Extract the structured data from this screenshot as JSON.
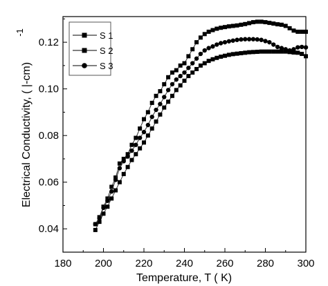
{
  "chart_data": {
    "type": "line",
    "xlabel": "Temperature, T (  K)",
    "ylabel": "Electrical Conductivity,    (  |-cm)",
    "ylabel_exponent": "-1",
    "xlim": [
      180,
      300
    ],
    "ylim": [
      0.03,
      0.131
    ],
    "xticks": [
      180,
      200,
      220,
      240,
      260,
      280,
      300
    ],
    "yticks": [
      0.04,
      0.06,
      0.08,
      0.1,
      0.12
    ],
    "ytick_labels": [
      "0.04",
      "0.06",
      "0.08",
      "0.10",
      "0.12"
    ],
    "legend_position": "top-left",
    "series": [
      {
        "name": "S 1",
        "marker": "square",
        "x": [
          196,
          198,
          200,
          202,
          204,
          206,
          208,
          210,
          212,
          214,
          216,
          218,
          220,
          222,
          224,
          226,
          228,
          230,
          232,
          234,
          236,
          238,
          240,
          242,
          244,
          246,
          248,
          250,
          252,
          254,
          256,
          258,
          260,
          262,
          264,
          266,
          268,
          270,
          272,
          274,
          276,
          278,
          280,
          282,
          284,
          286,
          288,
          290,
          292,
          294,
          296,
          298,
          300
        ],
        "y": [
          0.0395,
          0.043,
          0.0465,
          0.0495,
          0.053,
          0.0565,
          0.06,
          0.0635,
          0.0665,
          0.0695,
          0.072,
          0.0745,
          0.077,
          0.08,
          0.083,
          0.086,
          0.089,
          0.092,
          0.0945,
          0.097,
          0.0995,
          0.1015,
          0.1035,
          0.1055,
          0.107,
          0.1085,
          0.11,
          0.111,
          0.112,
          0.1127,
          0.1133,
          0.1138,
          0.1142,
          0.1146,
          0.1149,
          0.1151,
          0.1153,
          0.1155,
          0.1157,
          0.1158,
          0.1159,
          0.116,
          0.116,
          0.116,
          0.116,
          0.116,
          0.116,
          0.116,
          0.1158,
          0.1156,
          0.1155,
          0.115,
          0.114
        ]
      },
      {
        "name": "S 2",
        "marker": "square",
        "x": [
          196,
          198,
          200,
          202,
          204,
          206,
          208,
          210,
          212,
          214,
          216,
          218,
          220,
          222,
          224,
          226,
          228,
          230,
          232,
          234,
          236,
          238,
          240,
          242,
          244,
          246,
          248,
          250,
          252,
          254,
          256,
          258,
          260,
          262,
          264,
          266,
          268,
          270,
          272,
          274,
          276,
          278,
          280,
          282,
          284,
          286,
          288,
          290,
          292,
          294,
          296,
          298,
          300
        ],
        "y": [
          0.042,
          0.045,
          0.0495,
          0.053,
          0.058,
          0.062,
          0.068,
          0.07,
          0.072,
          0.076,
          0.079,
          0.083,
          0.087,
          0.09,
          0.094,
          0.097,
          0.099,
          0.102,
          0.105,
          0.107,
          0.108,
          0.11,
          0.111,
          0.114,
          0.117,
          0.12,
          0.122,
          0.1235,
          0.1245,
          0.1252,
          0.1258,
          0.1262,
          0.1265,
          0.1268,
          0.127,
          0.1272,
          0.1275,
          0.1278,
          0.1282,
          0.1286,
          0.1288,
          0.1288,
          0.1286,
          0.1283,
          0.128,
          0.1277,
          0.1275,
          0.127,
          0.126,
          0.125,
          0.1245,
          0.1245,
          0.1245
        ]
      },
      {
        "name": "S 3",
        "marker": "circle",
        "x": [
          196,
          198,
          200,
          202,
          204,
          206,
          208,
          210,
          212,
          214,
          216,
          218,
          220,
          222,
          224,
          226,
          228,
          230,
          232,
          234,
          236,
          238,
          240,
          242,
          244,
          246,
          248,
          250,
          252,
          254,
          256,
          258,
          260,
          262,
          264,
          266,
          268,
          270,
          272,
          274,
          276,
          278,
          280,
          282,
          284,
          286,
          288,
          290,
          292,
          294,
          296,
          298,
          300
        ],
        "y": [
          0.042,
          0.0445,
          0.049,
          0.052,
          0.056,
          0.061,
          0.066,
          0.069,
          0.071,
          0.0735,
          0.076,
          0.079,
          0.0815,
          0.0845,
          0.088,
          0.091,
          0.0935,
          0.0965,
          0.0995,
          0.102,
          0.104,
          0.1055,
          0.107,
          0.109,
          0.111,
          0.113,
          0.115,
          0.1165,
          0.1175,
          0.1182,
          0.119,
          0.1196,
          0.12,
          0.1204,
          0.1207,
          0.121,
          0.1212,
          0.1213,
          0.1213,
          0.1213,
          0.1212,
          0.121,
          0.1205,
          0.12,
          0.119,
          0.118,
          0.1175,
          0.117,
          0.1165,
          0.117,
          0.1178,
          0.118,
          0.1178
        ]
      }
    ]
  }
}
